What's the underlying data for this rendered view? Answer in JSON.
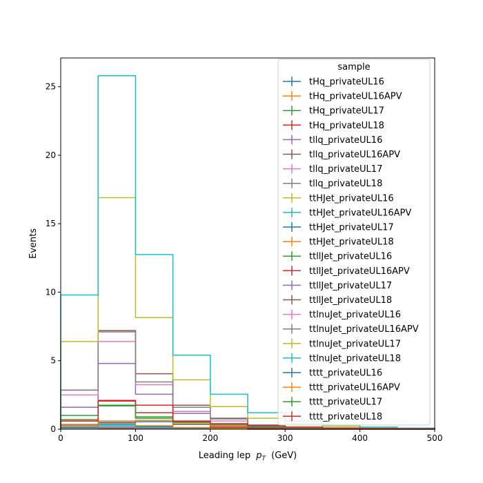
{
  "chart_data": {
    "type": "histogram-step",
    "xlabel": "Leading lep",
    "xlabel_sub": "T",
    "xlabel_unit": "(GeV)",
    "xlabel_var": "p",
    "ylabel": "Events",
    "xlim": [
      0,
      500
    ],
    "ylim": [
      0,
      27.1
    ],
    "xticks": [
      "0",
      "100",
      "200",
      "300",
      "400",
      "500"
    ],
    "yticks": [
      "0",
      "5",
      "10",
      "15",
      "20",
      "25"
    ],
    "bin_edges": [
      0,
      50,
      100,
      150,
      200,
      250,
      300,
      350,
      400,
      450,
      500
    ],
    "legend_title": "sample",
    "legend_position": "top-right",
    "series": [
      {
        "name": "tHq_privateUL16",
        "color": "#1f77b4",
        "values": [
          0.02,
          0.05,
          0.03,
          0.02,
          0.01,
          0.005,
          0.003,
          0.002,
          0.001,
          0.001
        ]
      },
      {
        "name": "tHq_privateUL16APV",
        "color": "#ff7f0e",
        "values": [
          0.02,
          0.05,
          0.03,
          0.02,
          0.01,
          0.005,
          0.003,
          0.002,
          0.001,
          0.001
        ]
      },
      {
        "name": "tHq_privateUL17",
        "color": "#2ca02c",
        "values": [
          0.03,
          0.06,
          0.04,
          0.02,
          0.01,
          0.006,
          0.003,
          0.002,
          0.001,
          0.001
        ]
      },
      {
        "name": "tHq_privateUL18",
        "color": "#d62728",
        "values": [
          0.04,
          0.08,
          0.05,
          0.03,
          0.015,
          0.008,
          0.004,
          0.002,
          0.001,
          0.001
        ]
      },
      {
        "name": "tllq_privateUL16",
        "color": "#9467bd",
        "values": [
          0.05,
          0.1,
          0.06,
          0.03,
          0.02,
          0.01,
          0.005,
          0.003,
          0.002,
          0.001
        ]
      },
      {
        "name": "tllq_privateUL16APV",
        "color": "#8c564b",
        "values": [
          0.05,
          0.1,
          0.06,
          0.03,
          0.02,
          0.01,
          0.005,
          0.003,
          0.002,
          0.001
        ]
      },
      {
        "name": "tllq_privateUL17",
        "color": "#e377c2",
        "values": [
          0.06,
          0.12,
          0.07,
          0.04,
          0.02,
          0.01,
          0.006,
          0.003,
          0.002,
          0.001
        ]
      },
      {
        "name": "tllq_privateUL18",
        "color": "#7f7f7f",
        "values": [
          0.08,
          0.15,
          0.09,
          0.05,
          0.03,
          0.015,
          0.008,
          0.004,
          0.002,
          0.001
        ]
      },
      {
        "name": "ttHJet_privateUL16",
        "color": "#bcbd22",
        "values": [
          0.1,
          0.25,
          0.15,
          0.08,
          0.04,
          0.02,
          0.01,
          0.005,
          0.003,
          0.002
        ]
      },
      {
        "name": "ttHJet_privateUL16APV",
        "color": "#17becf",
        "values": [
          0.1,
          0.25,
          0.15,
          0.08,
          0.04,
          0.02,
          0.01,
          0.005,
          0.003,
          0.002
        ]
      },
      {
        "name": "ttHJet_privateUL17",
        "color": "#1f77b4",
        "values": [
          0.15,
          0.35,
          0.2,
          0.1,
          0.05,
          0.025,
          0.012,
          0.006,
          0.003,
          0.002
        ]
      },
      {
        "name": "ttHJet_privateUL18",
        "color": "#ff7f0e",
        "values": [
          0.2,
          0.45,
          0.25,
          0.12,
          0.06,
          0.03,
          0.015,
          0.008,
          0.004,
          0.002
        ]
      },
      {
        "name": "ttllJet_privateUL16",
        "color": "#2ca02c",
        "values": [
          0.7,
          1.7,
          0.9,
          0.35,
          0.12,
          0.06,
          0.03,
          0.015,
          0.008,
          0.004
        ]
      },
      {
        "name": "ttllJet_privateUL16APV",
        "color": "#d62728",
        "values": [
          0.6,
          2.1,
          1.2,
          0.55,
          0.15,
          0.08,
          0.04,
          0.02,
          0.01,
          0.005
        ]
      },
      {
        "name": "ttllJet_privateUL17",
        "color": "#9467bd",
        "values": [
          1.6,
          4.8,
          2.55,
          1.15,
          0.35,
          0.15,
          0.08,
          0.04,
          0.02,
          0.01
        ]
      },
      {
        "name": "ttllJet_privateUL18",
        "color": "#8c564b",
        "values": [
          2.85,
          7.2,
          4.05,
          1.75,
          0.8,
          0.3,
          0.15,
          0.08,
          0.04,
          0.02
        ]
      },
      {
        "name": "ttlnuJet_privateUL16",
        "color": "#e377c2",
        "values": [
          2.5,
          6.4,
          3.25,
          1.3,
          0.6,
          0.25,
          0.12,
          0.06,
          0.03,
          0.015
        ]
      },
      {
        "name": "ttlnuJet_privateUL16APV",
        "color": "#7f7f7f",
        "values": [
          2.85,
          7.1,
          3.45,
          1.6,
          0.75,
          0.3,
          0.15,
          0.08,
          0.04,
          0.02
        ]
      },
      {
        "name": "ttlnuJet_privateUL17",
        "color": "#bcbd22",
        "values": [
          6.4,
          16.9,
          8.15,
          3.6,
          1.65,
          0.8,
          0.4,
          0.2,
          0.1,
          0.05
        ]
      },
      {
        "name": "ttlnuJet_privateUL18",
        "color": "#17becf",
        "values": [
          9.8,
          25.8,
          12.75,
          5.4,
          2.55,
          1.2,
          0.6,
          0.3,
          0.15,
          0.08
        ]
      },
      {
        "name": "tttt_privateUL16",
        "color": "#1f77b4",
        "values": [
          0.3,
          0.5,
          0.55,
          0.35,
          0.25,
          0.15,
          0.08,
          0.05,
          0.03,
          0.02
        ]
      },
      {
        "name": "tttt_privateUL16APV",
        "color": "#ff7f0e",
        "values": [
          0.35,
          0.6,
          0.65,
          0.4,
          0.28,
          0.18,
          0.1,
          0.06,
          0.04,
          0.02
        ]
      },
      {
        "name": "tttt_privateUL17",
        "color": "#2ca02c",
        "values": [
          1.0,
          1.75,
          0.8,
          0.5,
          0.35,
          0.2,
          0.12,
          0.07,
          0.04,
          0.02
        ]
      },
      {
        "name": "tttt_privateUL18",
        "color": "#d62728",
        "values": [
          0.6,
          2.05,
          1.75,
          0.6,
          0.4,
          0.25,
          0.15,
          0.08,
          0.05,
          0.03
        ]
      }
    ]
  }
}
